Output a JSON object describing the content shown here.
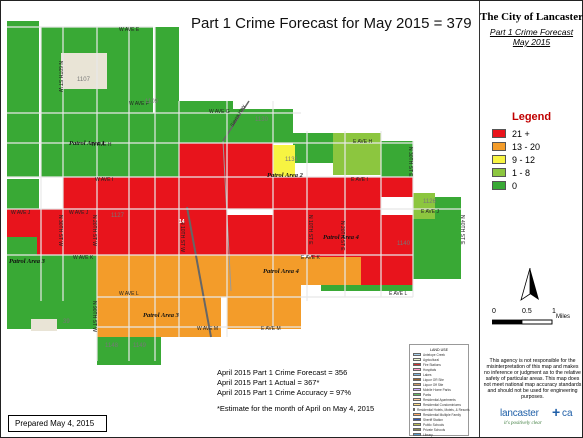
{
  "title": "Part 1 Crime Forecast for May 2015 = 379",
  "panel": {
    "city": "The City of Lancaster",
    "subtitle_line1": "Part 1 Crime Forecast",
    "subtitle_line2": "May 2015"
  },
  "legend": {
    "title": "Legend",
    "items": [
      {
        "label": "21 +",
        "color": "#e8141c"
      },
      {
        "label": "13 - 20",
        "color": "#f39c2a"
      },
      {
        "label": "9 - 12",
        "color": "#f7f442"
      },
      {
        "label": "1 - 8",
        "color": "#8cc63f"
      },
      {
        "label": "0",
        "color": "#39a935"
      }
    ]
  },
  "scale": {
    "labels": [
      "0",
      "0.5",
      "1",
      "Miles"
    ]
  },
  "disclaimer": "This agency is not responsible for the misinterpretation of this map and makes no inference or judgment as to the relative safety of particular areas. This map does not meet national map accuracy standards and should not be used for engineering purposes.",
  "logo": {
    "word": "lancaster",
    "ca": "ca",
    "tagline": "it's positively clear"
  },
  "stats": {
    "forecast": "April 2015 Part 1 Crime Forecast = 356",
    "actual": "April 2015 Part 1 Actual = 367*",
    "accuracy": "April 2015 Part 1 Crime Accuracy = 97%",
    "note": "*Estimate for the month of April on May 4, 2015"
  },
  "prepared": "Prepared May 4, 2015",
  "land_use": {
    "title": "LAND USE",
    "items": [
      {
        "label": "Antelope Creek",
        "color": "#a9d3ef"
      },
      {
        "label": "Agricultural",
        "color": "#e9f3cf"
      },
      {
        "label": "Fire Stations",
        "color": "#cc3333"
      },
      {
        "label": "Hospitals",
        "color": "#ff99cc"
      },
      {
        "label": "Lakes",
        "color": "#7fb7e0"
      },
      {
        "label": "Liquor OR Site",
        "color": "#996633"
      },
      {
        "label": "Liquor Off Site",
        "color": "#cc9966"
      },
      {
        "label": "Mobile Home Parks",
        "color": "#ccaaff"
      },
      {
        "label": "Parks",
        "color": "#66bb66"
      },
      {
        "label": "Residential Apartments",
        "color": "#ffcc99"
      },
      {
        "label": "Residential Condominiums",
        "color": "#ffdd88"
      },
      {
        "label": "Residential Hotels, Motels, & Resorts",
        "color": "#ff8888"
      },
      {
        "label": "Residential Multiple Family",
        "color": "#ffaa66"
      },
      {
        "label": "Sheriff Station",
        "color": "#3355aa"
      },
      {
        "label": "Public Schools",
        "color": "#bbbb55"
      },
      {
        "label": "Private Schools",
        "color": "#888855"
      },
      {
        "label": "Library",
        "color": "#5599cc"
      }
    ]
  },
  "map": {
    "colors": {
      "red": "#e8141c",
      "orange": "#f39c2a",
      "yellow": "#f7f442",
      "lightgreen": "#8cc63f",
      "green": "#39a935"
    },
    "streets": [
      "W AVE E",
      "W AVE F",
      "W AVE G",
      "W AVE H",
      "W AVE I",
      "W AVE J",
      "W AVE K",
      "W AVE L",
      "W AVE M",
      "E AVE H",
      "E AVE I",
      "E AVE J",
      "E AVE K",
      "E AVE L",
      "E AVE M",
      "N 60TH ST W",
      "N 30TH ST W",
      "N 20TH ST W",
      "N 10TH ST W",
      "N 90TH ST W",
      "N 10TH ST E",
      "N 20TH ST E",
      "N 30TH ST E",
      "N 40TH ST E",
      "Sierra Hwy",
      "14"
    ],
    "patrol_areas": [
      "Patrol Area 1",
      "Patrol Area 2",
      "Patrol Area 3",
      "Patrol Area 3",
      "Patrol Area 4",
      "Patrol Area 4"
    ],
    "zones": [
      "1107",
      "1109",
      "1130",
      "1131",
      "1127",
      "1126",
      "1140",
      "39",
      "1148",
      "1149"
    ]
  }
}
